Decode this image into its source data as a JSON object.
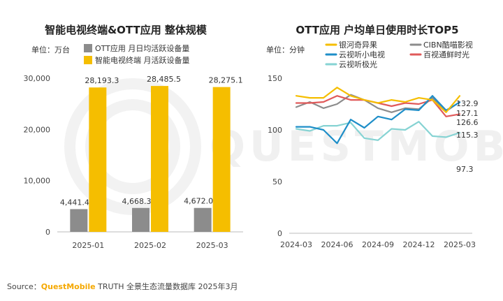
{
  "watermark": "QUESTMOBILE",
  "source": {
    "prefix": "Source：",
    "brand": "QuestMobile",
    "rest": " TRUTH 全景生态流量数据库 2025年3月"
  },
  "chart_data": [
    {
      "type": "bar",
      "title": "智能电视终端&OTT应用 整体规模",
      "unit": "单位：万台",
      "categories": [
        "2025-01",
        "2025-02",
        "2025-03"
      ],
      "ylim": [
        0,
        30000
      ],
      "yticks": [
        "0",
        "10,000",
        "20,000",
        "30,000"
      ],
      "ytick_values": [
        0,
        10000,
        20000,
        30000
      ],
      "grid": false,
      "legend_position": "top",
      "series": [
        {
          "name": "OTT应用 月日均活跃设备量",
          "color": "#8c8c8c",
          "values": [
            4441.4,
            4668.3,
            4672.0
          ],
          "labels": [
            "4,441.4",
            "4,668.3",
            "4,672.0"
          ]
        },
        {
          "name": "智能电视终端 月活跃设备量",
          "color": "#f5be00",
          "values": [
            28193.3,
            28485.5,
            28275.1
          ],
          "labels": [
            "28,193.3",
            "28,485.5",
            "28,275.1"
          ]
        }
      ]
    },
    {
      "type": "line",
      "title": "OTT应用 户均单日使用时长TOP5",
      "unit": "单位：分钟",
      "x": [
        "2024-03",
        "2024-04",
        "2024-05",
        "2024-06",
        "2024-07",
        "2024-08",
        "2024-09",
        "2024-10",
        "2024-11",
        "2024-12",
        "2025-01",
        "2025-02",
        "2025-03"
      ],
      "xticks": [
        "2024-03",
        "2024-06",
        "2024-09",
        "2024-12",
        "2025-03"
      ],
      "ylim": [
        0,
        150
      ],
      "yticks": [
        "0",
        "50",
        "100",
        "150"
      ],
      "ytick_values": [
        0,
        50,
        100,
        150
      ],
      "grid": false,
      "legend_position": "top",
      "series": [
        {
          "name": "银河奇异果",
          "color": "#f5be00",
          "values": [
            133,
            131,
            131,
            141,
            133,
            129,
            126,
            129,
            127,
            131,
            129,
            117,
            132.9
          ],
          "end_label": "132.9"
        },
        {
          "name": "CIBN酷喵影视",
          "color": "#8c8c8c",
          "values": [
            122,
            127,
            121,
            125,
            134,
            129,
            121,
            117,
            121,
            120,
            131,
            118,
            127.1
          ],
          "end_label": "127.1"
        },
        {
          "name": "云视听小电视",
          "color": "#1e8ec8",
          "values": [
            103,
            103,
            100,
            87,
            110,
            102,
            113,
            110,
            120,
            119,
            133,
            119,
            126.6
          ],
          "end_label": "126.6"
        },
        {
          "name": "百视通鲜时光",
          "color": "#e05a5a",
          "values": [
            126,
            126,
            127,
            133,
            129,
            129,
            126,
            123,
            126,
            125,
            129,
            113,
            115.3
          ],
          "end_label": "115.3"
        },
        {
          "name": "云视听极光",
          "color": "#86d3d3",
          "values": [
            101,
            99,
            104,
            104,
            107,
            92,
            90,
            101,
            100,
            108,
            94,
            93,
            97.3
          ],
          "end_label": "97.3"
        }
      ]
    }
  ]
}
